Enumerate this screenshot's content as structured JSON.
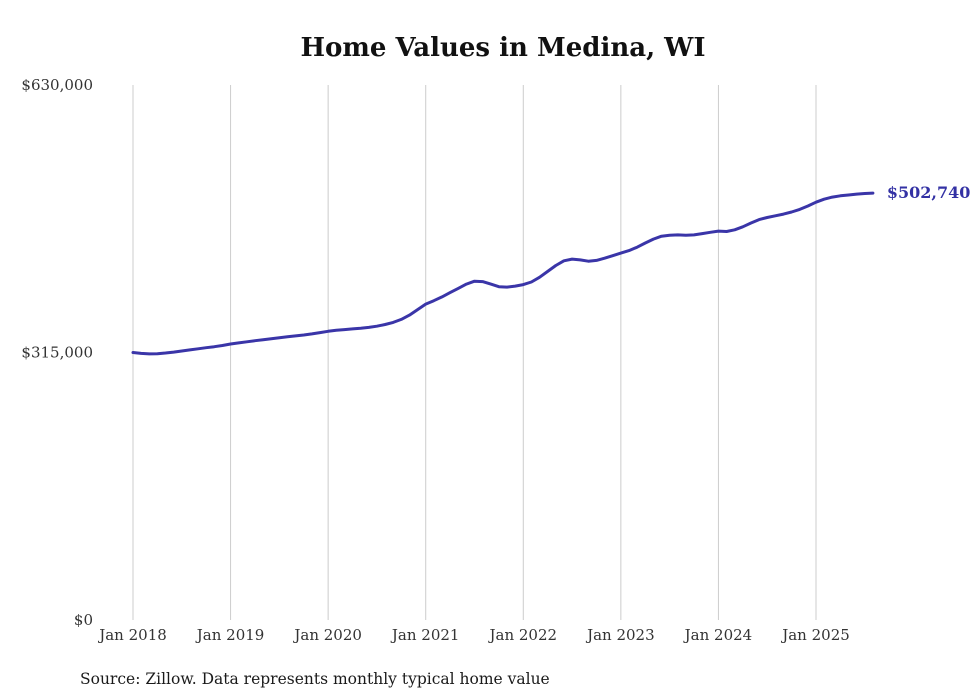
{
  "title": "Home Values in Medina, WI",
  "source_note": "Source: Zillow. Data represents monthly typical home value",
  "colors": {
    "line": "#3a35a8",
    "end_label": "#3331a4",
    "grid": "#cccccc",
    "tick_text": "#333333"
  },
  "chart_data": {
    "type": "line",
    "title": "Home Values in Medina, WI",
    "x_tick_labels": [
      "Jan 2018",
      "Jan 2019",
      "Jan 2020",
      "Jan 2021",
      "Jan 2022",
      "Jan 2023",
      "Jan 2024",
      "Jan 2025"
    ],
    "y_ticks": [
      {
        "value": 0,
        "label": "$0"
      },
      {
        "value": 315000,
        "label": "$315,000"
      },
      {
        "value": 630000,
        "label": "$630,000"
      }
    ],
    "ylim": [
      0,
      630000
    ],
    "x_start": "Jan 2018",
    "x_end": "Aug 2025",
    "months_per_tick": 12,
    "grid": "vertical-only",
    "legend": "none",
    "final_value": 502740,
    "final_value_label": "$502,740",
    "series": [
      {
        "name": "Monthly typical home value",
        "values": [
          315000,
          313900,
          313300,
          313600,
          314400,
          315500,
          316800,
          318100,
          319400,
          320600,
          321800,
          323200,
          325000,
          326300,
          327600,
          328900,
          330100,
          331300,
          332400,
          333500,
          334500,
          335600,
          336900,
          338400,
          340000,
          341100,
          342000,
          342800,
          343500,
          344500,
          346000,
          348000,
          350500,
          354000,
          359000,
          365500,
          372000,
          376000,
          380500,
          385500,
          390500,
          395500,
          399000,
          398500,
          395500,
          392500,
          392000,
          393200,
          395000,
          398000,
          403500,
          410500,
          417500,
          423000,
          425000,
          424000,
          422500,
          423500,
          426000,
          429000,
          432000,
          435000,
          439000,
          444000,
          448500,
          452000,
          453000,
          453500,
          453000,
          453500,
          455000,
          456500,
          458000,
          457500,
          459500,
          463000,
          467500,
          471500,
          474000,
          476000,
          478000,
          480500,
          483500,
          487500,
          492000,
          495500,
          498000,
          499500,
          500500,
          501500,
          502200,
          502740
        ]
      }
    ]
  }
}
